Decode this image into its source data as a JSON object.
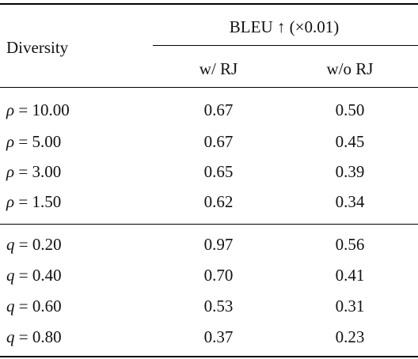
{
  "table": {
    "header": {
      "row_header": "Diversity",
      "metric_group": "BLEU ↑ (×0.01)",
      "columns": [
        "w/ RJ",
        "w/o RJ"
      ]
    },
    "groups": [
      {
        "rows": [
          {
            "var": "ρ",
            "op": " = ",
            "value": "10.00",
            "with_rj": "0.67",
            "without_rj": "0.50"
          },
          {
            "var": "ρ",
            "op": " = ",
            "value": "5.00",
            "with_rj": "0.67",
            "without_rj": "0.45"
          },
          {
            "var": "ρ",
            "op": " = ",
            "value": "3.00",
            "with_rj": "0.65",
            "without_rj": "0.39"
          },
          {
            "var": "ρ",
            "op": " = ",
            "value": "1.50",
            "with_rj": "0.62",
            "without_rj": "0.34"
          }
        ]
      },
      {
        "rows": [
          {
            "var": "q",
            "op": " = ",
            "value": "0.20",
            "with_rj": "0.97",
            "without_rj": "0.56"
          },
          {
            "var": "q",
            "op": " = ",
            "value": "0.40",
            "with_rj": "0.70",
            "without_rj": "0.41"
          },
          {
            "var": "q",
            "op": " = ",
            "value": "0.60",
            "with_rj": "0.53",
            "without_rj": "0.31"
          },
          {
            "var": "q",
            "op": " = ",
            "value": "0.80",
            "with_rj": "0.37",
            "without_rj": "0.23"
          }
        ]
      }
    ]
  }
}
